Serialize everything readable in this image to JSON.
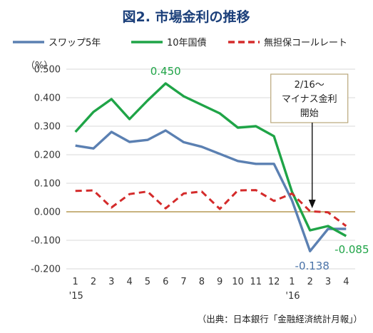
{
  "chart_data": {
    "type": "line",
    "title": "図2. 市場金利の推移",
    "ylabel": "（%）",
    "ylim": [
      -0.2,
      0.5
    ],
    "yticks": [
      "0.500",
      "0.400",
      "0.300",
      "0.200",
      "0.100",
      "0.000",
      "-0.100",
      "-0.200"
    ],
    "categories": [
      "1",
      "2",
      "3",
      "4",
      "5",
      "6",
      "7",
      "8",
      "9",
      "10",
      "11",
      "12",
      "1",
      "2",
      "3",
      "4"
    ],
    "year_labels": [
      {
        "index": 0,
        "label": "'15"
      },
      {
        "index": 12,
        "label": "'16"
      }
    ],
    "grid": "horizontal",
    "legend_position": "top",
    "series": [
      {
        "name": "スワップ5年",
        "color": "#5b80b2",
        "dash": "solid",
        "values": [
          0.232,
          0.222,
          0.28,
          0.245,
          0.252,
          0.285,
          0.244,
          0.228,
          0.203,
          0.178,
          0.168,
          0.168,
          0.04,
          -0.138,
          -0.06,
          -0.06
        ]
      },
      {
        "name": "10年国債",
        "color": "#1fa447",
        "dash": "solid",
        "values": [
          0.28,
          0.35,
          0.395,
          0.325,
          0.39,
          0.45,
          0.405,
          0.375,
          0.345,
          0.295,
          0.3,
          0.265,
          0.07,
          -0.065,
          -0.05,
          -0.085
        ]
      },
      {
        "name": "無担保コールレート",
        "color": "#d42b2b",
        "dash": "dashed",
        "values": [
          0.073,
          0.075,
          0.015,
          0.062,
          0.071,
          0.012,
          0.064,
          0.071,
          0.01,
          0.075,
          0.076,
          0.038,
          0.064,
          0.002,
          -0.002,
          -0.05
        ]
      }
    ],
    "annotations": [
      {
        "series": 1,
        "index": 5,
        "text": "0.450",
        "class": "label-green",
        "dx": 0,
        "dy": -12
      },
      {
        "series": 0,
        "index": 13,
        "text": "-0.138",
        "class": "label-blue",
        "dx": 3,
        "dy": 26
      },
      {
        "series": 1,
        "index": 15,
        "text": "-0.085",
        "class": "label-green",
        "dx": 8,
        "dy": 24
      }
    ],
    "callout": {
      "lines": [
        "2/16～",
        "マイナス金利",
        "開始"
      ],
      "index": 13
    },
    "source": "（出典：日本銀行「金融経済統計月報」）"
  }
}
